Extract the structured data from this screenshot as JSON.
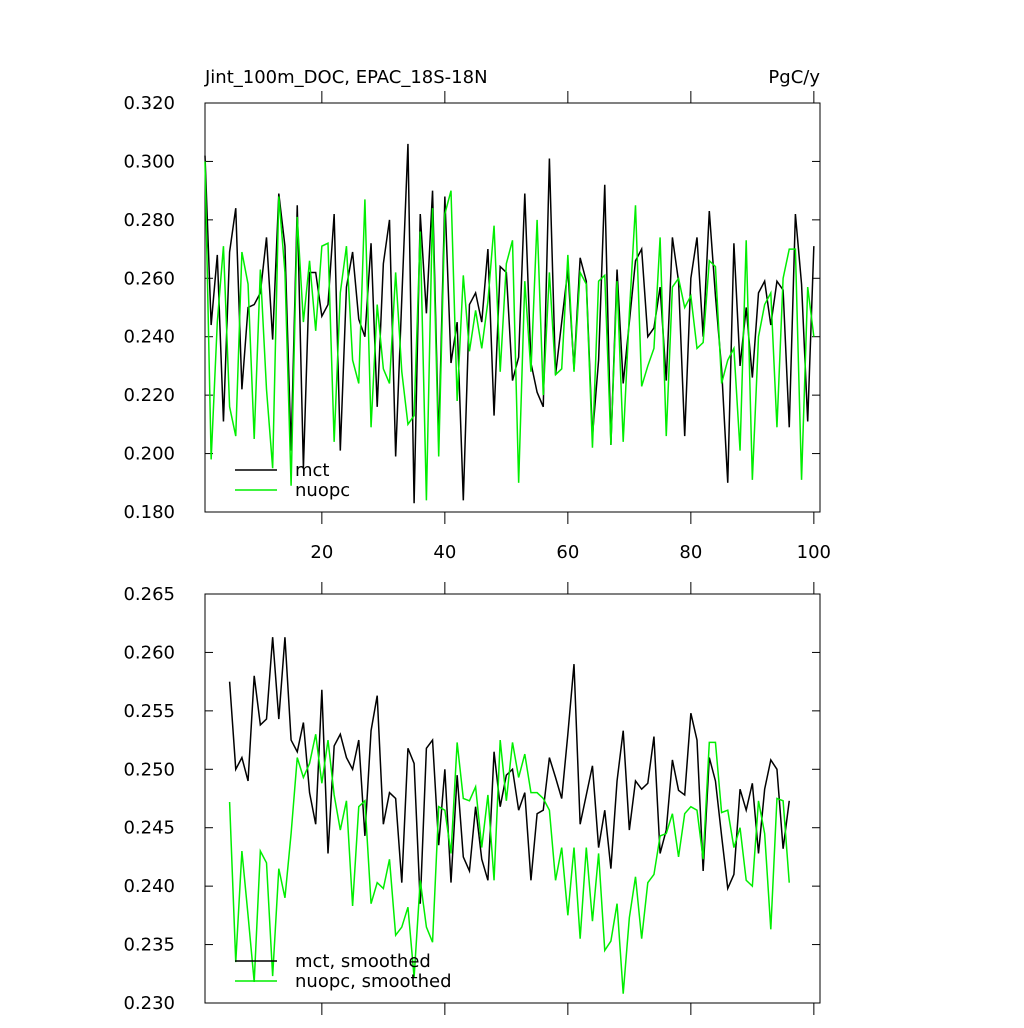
{
  "chart_data": [
    {
      "type": "line",
      "title": "Jint_100m_DOC, EPAC_18S-18N",
      "right_title": "PgC/y",
      "x": [
        1,
        2,
        3,
        4,
        5,
        6,
        7,
        8,
        9,
        10,
        11,
        12,
        13,
        14,
        15,
        16,
        17,
        18,
        19,
        20,
        21,
        22,
        23,
        24,
        25,
        26,
        27,
        28,
        29,
        30,
        31,
        32,
        33,
        34,
        35,
        36,
        37,
        38,
        39,
        40,
        41,
        42,
        43,
        44,
        45,
        46,
        47,
        48,
        49,
        50,
        51,
        52,
        53,
        54,
        55,
        56,
        57,
        58,
        59,
        60,
        61,
        62,
        63,
        64,
        65,
        66,
        67,
        68,
        69,
        70,
        71,
        72,
        73,
        74,
        75,
        76,
        77,
        78,
        79,
        80,
        81,
        82,
        83,
        84,
        85,
        86,
        87,
        88,
        89,
        90,
        91,
        92,
        93,
        94,
        95,
        96,
        97,
        98,
        99,
        100
      ],
      "series": [
        {
          "name": "mct",
          "color": "#000000",
          "values": [
            0.302,
            0.244,
            0.268,
            0.211,
            0.269,
            0.284,
            0.222,
            0.25,
            0.251,
            0.255,
            0.274,
            0.239,
            0.289,
            0.271,
            0.201,
            0.285,
            0.195,
            0.262,
            0.262,
            0.247,
            0.251,
            0.282,
            0.201,
            0.257,
            0.269,
            0.246,
            0.24,
            0.272,
            0.216,
            0.265,
            0.28,
            0.199,
            0.253,
            0.306,
            0.183,
            0.282,
            0.248,
            0.29,
            0.204,
            0.288,
            0.231,
            0.245,
            0.184,
            0.251,
            0.255,
            0.245,
            0.27,
            0.213,
            0.264,
            0.262,
            0.225,
            0.233,
            0.289,
            0.231,
            0.221,
            0.216,
            0.301,
            0.227,
            0.245,
            0.263,
            0.229,
            0.267,
            0.259,
            0.206,
            0.232,
            0.292,
            0.203,
            0.263,
            0.224,
            0.245,
            0.266,
            0.27,
            0.24,
            0.243,
            0.257,
            0.225,
            0.274,
            0.259,
            0.206,
            0.26,
            0.274,
            0.24,
            0.283,
            0.254,
            0.229,
            0.19,
            0.272,
            0.23,
            0.25,
            0.226,
            0.255,
            0.259,
            0.244,
            0.259,
            0.256,
            0.209,
            0.282,
            0.258,
            0.211,
            0.271
          ]
        },
        {
          "name": "nuopc",
          "color": "#00ee00",
          "values": [
            0.3,
            0.198,
            0.245,
            0.271,
            0.216,
            0.206,
            0.269,
            0.258,
            0.205,
            0.263,
            0.222,
            0.195,
            0.288,
            0.262,
            0.189,
            0.281,
            0.245,
            0.266,
            0.242,
            0.271,
            0.272,
            0.204,
            0.255,
            0.271,
            0.232,
            0.224,
            0.287,
            0.209,
            0.251,
            0.229,
            0.224,
            0.262,
            0.228,
            0.21,
            0.213,
            0.276,
            0.184,
            0.284,
            0.199,
            0.282,
            0.29,
            0.218,
            0.261,
            0.235,
            0.249,
            0.236,
            0.252,
            0.278,
            0.228,
            0.265,
            0.273,
            0.19,
            0.259,
            0.228,
            0.28,
            0.22,
            0.262,
            0.227,
            0.229,
            0.268,
            0.228,
            0.262,
            0.258,
            0.202,
            0.259,
            0.261,
            0.203,
            0.259,
            0.204,
            0.248,
            0.285,
            0.223,
            0.23,
            0.236,
            0.274,
            0.206,
            0.257,
            0.26,
            0.25,
            0.254,
            0.236,
            0.238,
            0.266,
            0.264,
            0.224,
            0.232,
            0.236,
            0.201,
            0.273,
            0.191,
            0.24,
            0.251,
            0.255,
            0.209,
            0.26,
            0.27,
            0.27,
            0.191,
            0.257,
            0.24
          ]
        }
      ],
      "xlim": [
        1,
        101
      ],
      "xticks": [
        20,
        40,
        60,
        80,
        100
      ],
      "show_xtick_labels": true,
      "ylim": [
        0.18,
        0.32
      ],
      "yticks": [
        {
          "value": 0.18,
          "label": "0.180"
        },
        {
          "value": 0.2,
          "label": "0.200"
        },
        {
          "value": 0.22,
          "label": "0.220"
        },
        {
          "value": 0.24,
          "label": "0.240"
        },
        {
          "value": 0.26,
          "label": "0.260"
        },
        {
          "value": 0.28,
          "label": "0.280"
        },
        {
          "value": 0.3,
          "label": "0.300"
        },
        {
          "value": 0.32,
          "label": "0.320"
        }
      ],
      "legend": "lower left"
    },
    {
      "type": "line",
      "x": [
        5,
        6,
        7,
        8,
        9,
        10,
        11,
        12,
        13,
        14,
        15,
        16,
        17,
        18,
        19,
        20,
        21,
        22,
        23,
        24,
        25,
        26,
        27,
        28,
        29,
        30,
        31,
        32,
        33,
        34,
        35,
        36,
        37,
        38,
        39,
        40,
        41,
        42,
        43,
        44,
        45,
        46,
        47,
        48,
        49,
        50,
        51,
        52,
        53,
        54,
        55,
        56,
        57,
        58,
        59,
        60,
        61,
        62,
        63,
        64,
        65,
        66,
        67,
        68,
        69,
        70,
        71,
        72,
        73,
        74,
        75,
        76,
        77,
        78,
        79,
        80,
        81,
        82,
        83,
        84,
        85,
        86,
        87,
        88,
        89,
        90,
        91,
        92,
        93,
        94,
        95,
        96
      ],
      "series": [
        {
          "name": "mct, smoothed",
          "color": "#000000",
          "values": [
            0.2575,
            0.25,
            0.251,
            0.249,
            0.258,
            0.2538,
            0.2543,
            0.2613,
            0.2543,
            0.2613,
            0.2525,
            0.2515,
            0.254,
            0.248,
            0.2453,
            0.2568,
            0.2428,
            0.252,
            0.253,
            0.251,
            0.25,
            0.2525,
            0.2443,
            0.2533,
            0.2563,
            0.2453,
            0.248,
            0.2475,
            0.2403,
            0.2518,
            0.2505,
            0.2385,
            0.2518,
            0.2525,
            0.2435,
            0.25,
            0.2403,
            0.2495,
            0.2425,
            0.2413,
            0.2468,
            0.2423,
            0.2405,
            0.2515,
            0.2468,
            0.2495,
            0.25,
            0.2465,
            0.248,
            0.2405,
            0.2462,
            0.2465,
            0.251,
            0.2493,
            0.2475,
            0.253,
            0.259,
            0.2453,
            0.2478,
            0.2503,
            0.2433,
            0.2465,
            0.2415,
            0.249,
            0.2533,
            0.2448,
            0.249,
            0.2483,
            0.2488,
            0.2528,
            0.2428,
            0.2448,
            0.2508,
            0.2482,
            0.2478,
            0.2548,
            0.2525,
            0.2413,
            0.251,
            0.249,
            0.2443,
            0.2398,
            0.241,
            0.2483,
            0.2465,
            0.2488,
            0.2428,
            0.2483,
            0.2508,
            0.25,
            0.2432,
            0.2473
          ]
        },
        {
          "name": "nuopc, smoothed",
          "color": "#00ee00",
          "values": [
            0.2472,
            0.2335,
            0.243,
            0.2375,
            0.2318,
            0.243,
            0.242,
            0.2323,
            0.2415,
            0.239,
            0.2445,
            0.251,
            0.2493,
            0.2505,
            0.253,
            0.2488,
            0.2525,
            0.2478,
            0.2448,
            0.2473,
            0.2383,
            0.2468,
            0.2473,
            0.2385,
            0.2403,
            0.2398,
            0.2423,
            0.2358,
            0.2365,
            0.2382,
            0.2322,
            0.2405,
            0.2365,
            0.2352,
            0.2468,
            0.2465,
            0.2428,
            0.2523,
            0.2475,
            0.2473,
            0.2485,
            0.2433,
            0.2478,
            0.2405,
            0.2525,
            0.2473,
            0.2523,
            0.2493,
            0.2513,
            0.248,
            0.248,
            0.2475,
            0.2465,
            0.2405,
            0.2433,
            0.2375,
            0.2433,
            0.2355,
            0.2433,
            0.237,
            0.2428,
            0.2345,
            0.2353,
            0.2385,
            0.2308,
            0.2373,
            0.2408,
            0.2355,
            0.2403,
            0.241,
            0.2443,
            0.2445,
            0.2462,
            0.2425,
            0.2462,
            0.2468,
            0.2465,
            0.2423,
            0.2523,
            0.2523,
            0.2463,
            0.2465,
            0.2433,
            0.245,
            0.2405,
            0.24,
            0.2473,
            0.2445,
            0.2363,
            0.2475,
            0.2473,
            0.2403
          ]
        }
      ],
      "xlim": [
        1,
        101
      ],
      "xticks": [
        20,
        40,
        60,
        80,
        100
      ],
      "show_xtick_labels": false,
      "ylim": [
        0.23,
        0.265
      ],
      "yticks": [
        {
          "value": 0.23,
          "label": "0.230"
        },
        0.235,
        {
          "value": 0.24,
          "label": "0.240"
        },
        0.245,
        {
          "value": 0.25,
          "label": "0.250"
        },
        0.255,
        {
          "value": 0.26,
          "label": "0.260"
        },
        0.265
      ],
      "legend": "lower left"
    }
  ]
}
